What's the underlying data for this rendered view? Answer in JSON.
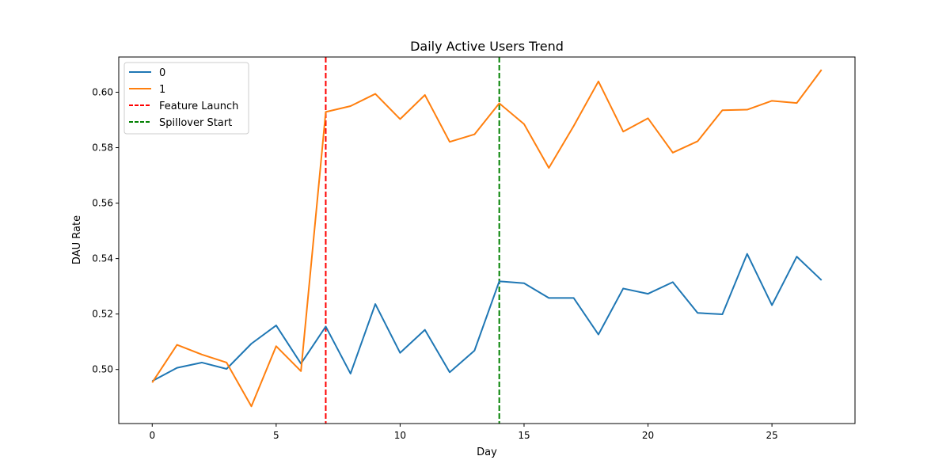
{
  "chart_data": {
    "type": "line",
    "title": "Daily Active Users Trend",
    "xlabel": "Day",
    "ylabel": "DAU Rate",
    "xlim": [
      -1.35,
      28.35
    ],
    "ylim": [
      0.4805,
      0.6127
    ],
    "x_ticks": [
      0,
      5,
      10,
      15,
      20,
      25
    ],
    "y_ticks": [
      0.5,
      0.52,
      0.54,
      0.56,
      0.58,
      0.6
    ],
    "x_tick_labels": [
      "0",
      "5",
      "10",
      "15",
      "20",
      "25"
    ],
    "y_tick_labels": [
      "0.50",
      "0.52",
      "0.54",
      "0.56",
      "0.58",
      "0.60"
    ],
    "grid": false,
    "legend_position": "upper-left",
    "x": [
      0,
      1,
      2,
      3,
      4,
      5,
      6,
      7,
      8,
      9,
      10,
      11,
      12,
      13,
      14,
      15,
      16,
      17,
      18,
      19,
      20,
      21,
      22,
      23,
      24,
      25,
      26,
      27
    ],
    "series": [
      {
        "name": "0",
        "color": "#1f77b4",
        "values": [
          0.4958,
          0.5006,
          0.5025,
          0.5002,
          0.5093,
          0.5159,
          0.5021,
          0.5155,
          0.4985,
          0.5236,
          0.506,
          0.5143,
          0.499,
          0.5068,
          0.5318,
          0.5311,
          0.5258,
          0.5258,
          0.5126,
          0.5292,
          0.5273,
          0.5315,
          0.5204,
          0.5199,
          0.5417,
          0.5232,
          0.5407,
          0.5322
        ]
      },
      {
        "name": "1",
        "color": "#ff7f0e",
        "values": [
          0.4953,
          0.5089,
          0.5054,
          0.5025,
          0.4867,
          0.5084,
          0.4994,
          0.5929,
          0.595,
          0.5994,
          0.5903,
          0.599,
          0.5821,
          0.5848,
          0.596,
          0.5885,
          0.5727,
          0.5878,
          0.6039,
          0.5858,
          0.5906,
          0.5782,
          0.5823,
          0.5935,
          0.5937,
          0.5969,
          0.5961,
          0.6081
        ]
      }
    ],
    "vlines": [
      {
        "name": "Feature Launch",
        "x": 7,
        "color": "#ff0000",
        "style": "dashed"
      },
      {
        "name": "Spillover Start",
        "x": 14,
        "color": "#008000",
        "style": "dashed"
      }
    ]
  }
}
